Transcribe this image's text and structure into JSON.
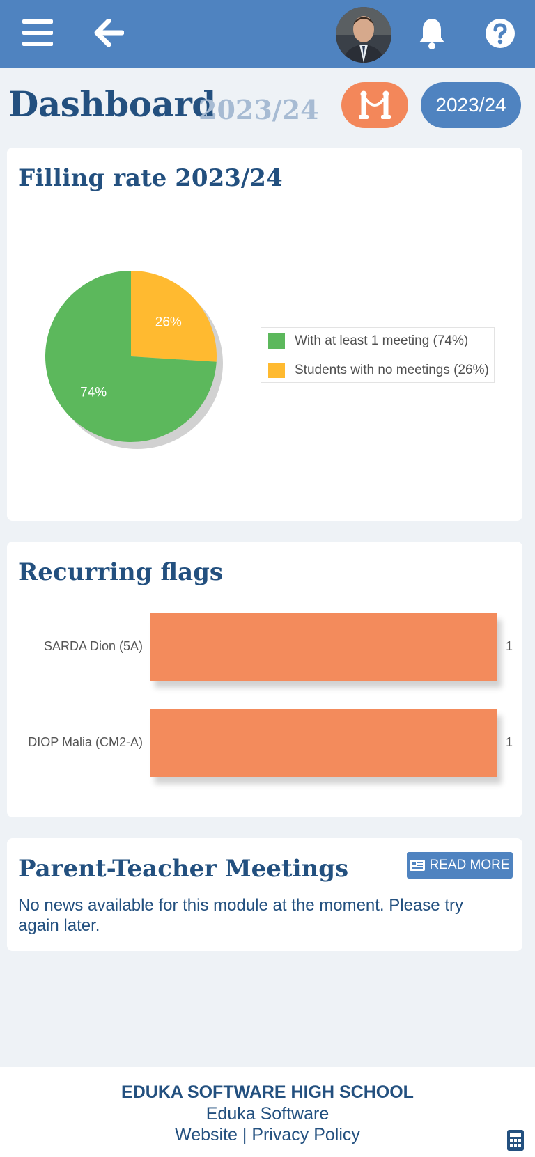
{
  "header": {
    "menu_icon": "hamburger-menu-icon",
    "back_icon": "arrow-left-icon",
    "avatar_icon": "user-avatar",
    "bell_icon": "bell-icon",
    "help_icon": "question-circle-icon"
  },
  "page": {
    "title": "Dashboard",
    "year": "2023/24",
    "module_icon": "meeting-stanchion-icon",
    "year_button": "2023/24"
  },
  "filling_rate": {
    "title": "Filling rate 2023/24"
  },
  "recurring_flags": {
    "title": "Recurring flags"
  },
  "chart_data": [
    {
      "type": "pie",
      "title": "Filling rate 2023/24",
      "slices": [
        {
          "label": "With at least 1 meeting (74%)",
          "value": 74,
          "data_label": "74%",
          "color": "#5cb85c"
        },
        {
          "label": "Students with no meetings (26%)",
          "value": 26,
          "data_label": "26%",
          "color": "#ffba30"
        }
      ],
      "legend": "right"
    },
    {
      "type": "bar",
      "orientation": "horizontal",
      "title": "Recurring flags",
      "categories": [
        "SARDA Dion (5A)",
        "DIOP Malia (CM2-A)"
      ],
      "values": [
        1,
        1
      ],
      "value_labels": [
        "1",
        "1"
      ],
      "xlim": [
        0,
        1
      ],
      "color": "#f38b5c"
    }
  ],
  "meetings": {
    "title": "Parent-Teacher Meetings",
    "read_more": "READ MORE",
    "read_more_icon": "newspaper-icon",
    "message": "No news available for this module at the moment. Please try again later."
  },
  "footer": {
    "school": "EDUKA SOFTWARE HIGH SCHOOL",
    "company": "Eduka Software",
    "website": "Website",
    "separator": " | ",
    "privacy": "Privacy Policy",
    "calculator_icon": "calculator-icon"
  },
  "colors": {
    "primary": "#4f83c0",
    "accent": "#f3875a",
    "text": "#23507f",
    "pie_green": "#5cb85c",
    "pie_yellow": "#ffba30"
  }
}
